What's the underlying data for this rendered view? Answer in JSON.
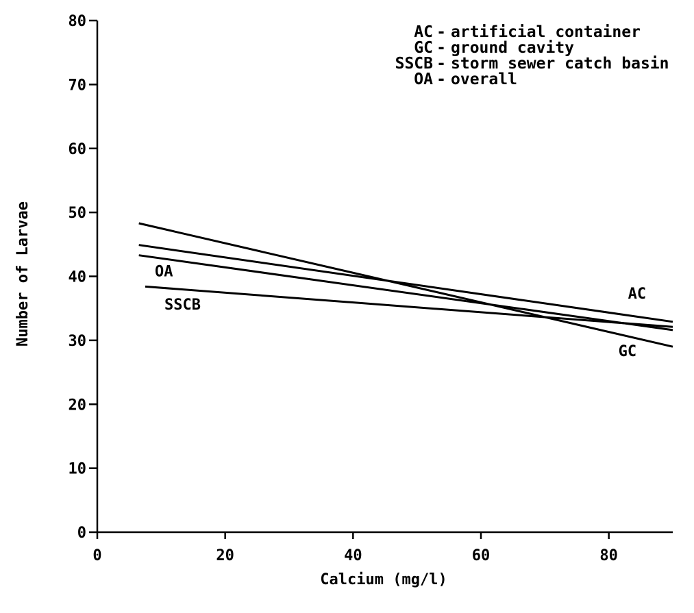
{
  "chart_data": {
    "type": "line",
    "title": "",
    "xlabel": "Calcium (mg/l)",
    "ylabel": "Number of Larvae",
    "xlim": [
      0,
      90
    ],
    "ylim": [
      0,
      80
    ],
    "x_ticks": [
      0,
      20,
      40,
      60,
      80
    ],
    "y_ticks": [
      0,
      10,
      20,
      30,
      40,
      50,
      60,
      70,
      80
    ],
    "grid": false,
    "legend_position": "top-right",
    "legend": [
      {
        "code": "AC",
        "sep": "-",
        "text": "artificial container"
      },
      {
        "code": "GC",
        "sep": "-",
        "text": "ground cavity"
      },
      {
        "code": "SSCB",
        "sep": "-",
        "text": "storm sewer catch basin"
      },
      {
        "code": "OA",
        "sep": "-",
        "text": "overall"
      }
    ],
    "series": [
      {
        "name": "GC",
        "x": [
          6.5,
          90
        ],
        "y": [
          48.3,
          29.0
        ]
      },
      {
        "name": "AC",
        "x": [
          6.5,
          90
        ],
        "y": [
          44.9,
          32.9
        ]
      },
      {
        "name": "OA",
        "x": [
          6.5,
          90
        ],
        "y": [
          43.3,
          31.6
        ]
      },
      {
        "name": "SSCB",
        "x": [
          7.5,
          90
        ],
        "y": [
          38.4,
          32.1
        ]
      }
    ],
    "series_labels": [
      {
        "text": "OA",
        "x": 9,
        "y": 40
      },
      {
        "text": "SSCB",
        "x": 10.5,
        "y": 34.8
      },
      {
        "text": "AC",
        "x": 83,
        "y": 36.5
      },
      {
        "text": "GC",
        "x": 81.5,
        "y": 27.5
      }
    ]
  }
}
